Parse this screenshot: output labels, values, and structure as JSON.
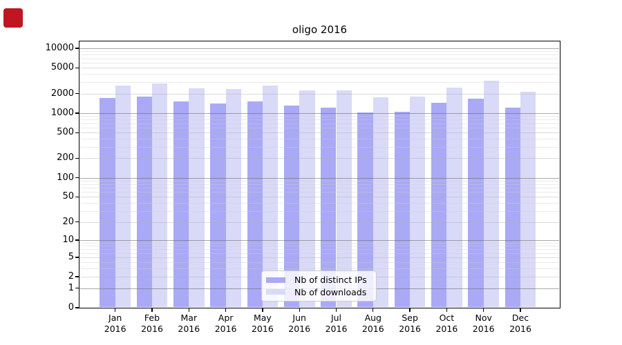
{
  "window": {
    "background": "#ffffff"
  },
  "marker": {
    "name": "red-square-marker",
    "color": "#c01622"
  },
  "chart_data": {
    "type": "bar",
    "title": "oligo 2016",
    "y_scale": "log1p",
    "grid": true,
    "legend_position": "lower center",
    "categories": [
      "Jan",
      "Feb",
      "Mar",
      "Apr",
      "May",
      "Jun",
      "Jul",
      "Aug",
      "Sep",
      "Oct",
      "Nov",
      "Dec"
    ],
    "x_year": "2016",
    "y_ticks": [
      0,
      1,
      2,
      5,
      10,
      20,
      50,
      100,
      200,
      500,
      1000,
      2000,
      5000,
      10000
    ],
    "ylim": [
      0,
      10000
    ],
    "series": [
      {
        "name": "Nb of distinct IPs",
        "color": "#a9a9f6",
        "values": [
          1700,
          1800,
          1510,
          1420,
          1520,
          1300,
          1220,
          1020,
          1040,
          1460,
          1690,
          1215
        ]
      },
      {
        "name": "Nb of downloads",
        "color": "#d9d9f8",
        "values": [
          2670,
          2870,
          2430,
          2350,
          2670,
          2230,
          2230,
          1760,
          1800,
          2450,
          3160,
          2140
        ]
      }
    ]
  }
}
